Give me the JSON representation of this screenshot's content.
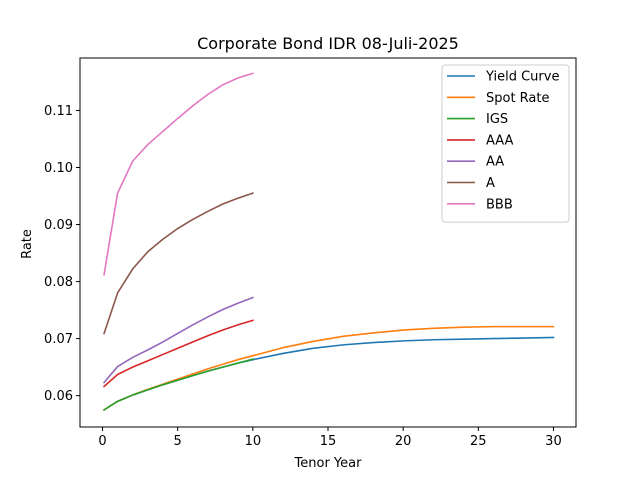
{
  "chart_data": {
    "type": "line",
    "title": "Corporate Bond IDR 08-Juli-2025",
    "xlabel": "Tenor Year",
    "ylabel": "Rate",
    "xlim": [
      -1.5,
      31.5
    ],
    "ylim": [
      0.0545,
      0.1192
    ],
    "xticks": [
      0,
      5,
      10,
      15,
      20,
      25,
      30
    ],
    "yticks": [
      0.06,
      0.07,
      0.08,
      0.09,
      0.1,
      0.11
    ],
    "ytick_labels": [
      "0.06",
      "0.07",
      "0.08",
      "0.09",
      "0.10",
      "0.11"
    ],
    "grid": false,
    "legend_position": "top-right",
    "series": [
      {
        "name": "Yield Curve",
        "color": "#1f77b4",
        "x": [
          0.1,
          1,
          2,
          3,
          4,
          5,
          6,
          7,
          8,
          9,
          10,
          12,
          14,
          16,
          18,
          20,
          22,
          24,
          26,
          28,
          30
        ],
        "y": [
          0.0575,
          0.059,
          0.0601,
          0.061,
          0.0619,
          0.0627,
          0.0635,
          0.0643,
          0.065,
          0.0657,
          0.0663,
          0.0674,
          0.0683,
          0.0689,
          0.0693,
          0.0696,
          0.0698,
          0.0699,
          0.07,
          0.0701,
          0.0702
        ]
      },
      {
        "name": "Spot Rate",
        "color": "#ff7f0e",
        "x": [
          0.1,
          1,
          2,
          3,
          4,
          5,
          6,
          7,
          8,
          9,
          10,
          12,
          14,
          16,
          18,
          20,
          22,
          24,
          26,
          28,
          30
        ],
        "y": [
          0.0575,
          0.059,
          0.0601,
          0.0611,
          0.062,
          0.0629,
          0.0638,
          0.0647,
          0.0655,
          0.0663,
          0.067,
          0.0684,
          0.0695,
          0.0704,
          0.071,
          0.0715,
          0.0718,
          0.072,
          0.0721,
          0.0721,
          0.0721
        ]
      },
      {
        "name": "IGS",
        "color": "#2ca02c",
        "x": [
          0.1,
          1,
          2,
          3,
          4,
          5,
          6,
          7,
          8,
          9,
          10
        ],
        "y": [
          0.0575,
          0.059,
          0.0601,
          0.061,
          0.0619,
          0.0627,
          0.0635,
          0.0643,
          0.065,
          0.0657,
          0.0664
        ]
      },
      {
        "name": "AAA",
        "color": "#d62728",
        "x": [
          0.1,
          1,
          2,
          3,
          4,
          5,
          6,
          7,
          8,
          9,
          10
        ],
        "y": [
          0.0616,
          0.0637,
          0.065,
          0.0661,
          0.0672,
          0.0683,
          0.0694,
          0.0705,
          0.0715,
          0.0724,
          0.0732
        ]
      },
      {
        "name": "AA",
        "color": "#9467bd",
        "x": [
          0.1,
          1,
          2,
          3,
          4,
          5,
          6,
          7,
          8,
          9,
          10
        ],
        "y": [
          0.0623,
          0.0651,
          0.0667,
          0.068,
          0.0694,
          0.0709,
          0.0724,
          0.0738,
          0.0751,
          0.0762,
          0.0772
        ]
      },
      {
        "name": "A",
        "color": "#8c564b",
        "x": [
          0.1,
          1,
          2,
          3,
          4,
          5,
          6,
          7,
          8,
          9,
          10
        ],
        "y": [
          0.0709,
          0.078,
          0.0822,
          0.0852,
          0.0874,
          0.0893,
          0.0909,
          0.0923,
          0.0936,
          0.0946,
          0.0955
        ]
      },
      {
        "name": "BBB",
        "color": "#e377c2",
        "x": [
          0.1,
          1,
          2,
          3,
          4,
          5,
          6,
          7,
          8,
          9,
          10
        ],
        "y": [
          0.0812,
          0.0955,
          0.1011,
          0.104,
          0.1063,
          0.1086,
          0.1108,
          0.1128,
          0.1145,
          0.1157,
          0.1165
        ]
      }
    ]
  }
}
